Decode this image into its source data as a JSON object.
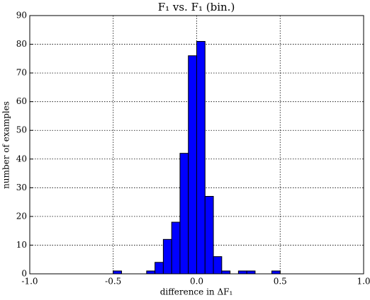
{
  "chart_data": {
    "type": "histogram",
    "title": "F₁ vs. F₁ (bin.)",
    "xlabel": "difference in ΔF₁",
    "ylabel": "number of examples",
    "bins": [
      -0.5,
      -0.45,
      -0.4,
      -0.35,
      -0.3,
      -0.25,
      -0.2,
      -0.15,
      -0.1,
      -0.05,
      0,
      0.05,
      0.1,
      0.15,
      0.2,
      0.25,
      0.3,
      0.35,
      0.4,
      0.45,
      0.5
    ],
    "values": [
      1,
      0,
      0,
      0,
      1,
      4,
      12,
      18,
      42,
      76,
      81,
      27,
      6,
      1,
      0,
      1,
      1,
      0,
      0,
      1
    ],
    "color": "#0000ff",
    "xlim": [
      -1.0,
      1.0
    ],
    "xticks": [
      {
        "value": -1.0,
        "label": "-1.0"
      },
      {
        "value": -0.5,
        "label": "-0.5"
      },
      {
        "value": 0,
        "label": "0.0"
      },
      {
        "value": 0.5,
        "label": "0.5"
      },
      {
        "value": 1.0,
        "label": "1.0"
      }
    ],
    "ylim": [
      0,
      90
    ],
    "yticks": [
      0,
      10,
      20,
      30,
      40,
      50,
      60,
      70,
      80,
      90
    ],
    "grid": true
  }
}
